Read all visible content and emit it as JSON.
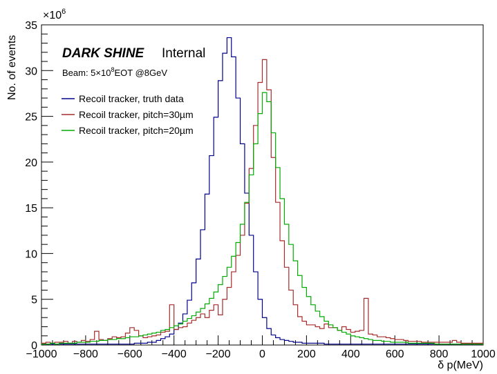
{
  "chart_data": {
    "type": "line",
    "style": "step-histogram",
    "title": "",
    "xlabel": "δ p(MeV)",
    "ylabel": "No. of events",
    "y_multiplier_label": "×10",
    "y_multiplier_exponent": "6",
    "xlim": [
      -1000,
      1000
    ],
    "ylim": [
      0,
      35
    ],
    "x_ticks": [
      -1000,
      -800,
      -600,
      -400,
      -200,
      0,
      200,
      400,
      600,
      800,
      1000
    ],
    "y_ticks": [
      0,
      5,
      10,
      15,
      20,
      25,
      30,
      35
    ],
    "grid": false,
    "legend_position": "top-left",
    "annotations": {
      "experiment": "DARK SHINE",
      "status": "Internal",
      "beam_prefix": "Beam: 5×10",
      "beam_exponent": "8",
      "beam_suffix": "EOT @8GeV"
    },
    "bin_edges_start": -1000,
    "bin_width": 20,
    "series": [
      {
        "name": "Recoil tracker, truth data",
        "color": "#00008b",
        "values": [
          0.1,
          0.1,
          0.1,
          0.1,
          0.1,
          0.1,
          0.1,
          0.1,
          0.1,
          0.1,
          0.1,
          0.1,
          0.1,
          0.1,
          0.1,
          0.1,
          0.1,
          0.1,
          0.1,
          0.1,
          0.1,
          0.2,
          0.2,
          0.2,
          0.3,
          0.3,
          0.5,
          0.7,
          0.9,
          1.2,
          1.7,
          2.4,
          3.4,
          4.9,
          6.8,
          9.4,
          12.6,
          16.5,
          20.7,
          24.9,
          28.9,
          31.9,
          33.6,
          31.5,
          27.0,
          22.0,
          16.6,
          12.0,
          8.0,
          5.0,
          3.0,
          1.8,
          1.1,
          0.8,
          0.6,
          0.5,
          0.4,
          0.3,
          0.3,
          0.2,
          0.2,
          0.2,
          0.2,
          0.2,
          0.1,
          0.1,
          0.1,
          0.1,
          0.1,
          0.1,
          0.1,
          0.1,
          0.1,
          0.1,
          0.1,
          0.1,
          0.1,
          0.1,
          0.1,
          0.1,
          0.1,
          0.1,
          0.1,
          0.1,
          0.1,
          0.1,
          0.1,
          0.1,
          0.1,
          0.1,
          0.1,
          0.1,
          0.1,
          0.1,
          0.1,
          0.1,
          0.1,
          0.1,
          0.1,
          0.1
        ]
      },
      {
        "name": "Recoil tracker, pitch=30µm",
        "color": "#a52a2a",
        "values": [
          0.2,
          0.3,
          0.2,
          0.3,
          0.3,
          0.4,
          0.2,
          0.4,
          0.3,
          0.5,
          0.4,
          0.6,
          1.5,
          0.6,
          0.5,
          0.7,
          0.9,
          0.8,
          0.9,
          1.3,
          1.9,
          1.6,
          1.0,
          0.8,
          0.9,
          1.0,
          1.1,
          1.4,
          1.5,
          4.4,
          1.7,
          1.9,
          2.0,
          2.4,
          2.7,
          3.0,
          3.4,
          3.0,
          3.8,
          4.4,
          3.3,
          5.0,
          6.3,
          8.0,
          9.8,
          12.0,
          15.5,
          19.3,
          24.0,
          28.7,
          31.2,
          27.9,
          20.5,
          15.6,
          11.4,
          8.5,
          6.0,
          4.4,
          3.1,
          2.6,
          2.2,
          2.2,
          2.0,
          1.8,
          2.3,
          1.9,
          1.9,
          1.6,
          2.0,
          1.7,
          1.4,
          1.5,
          1.6,
          5.1,
          1.2,
          1.1,
          0.9,
          0.9,
          0.8,
          0.7,
          0.6,
          0.6,
          0.5,
          0.4,
          0.4,
          0.4,
          0.3,
          0.3,
          0.3,
          0.3,
          0.3,
          0.3,
          0.3,
          0.5,
          0.3,
          0.2,
          0.2,
          0.2,
          0.2,
          0.2
        ]
      },
      {
        "name": "Recoil tracker, pitch=20µm",
        "color": "#00aa00",
        "values": [
          0.1,
          0.1,
          0.2,
          0.1,
          0.2,
          0.2,
          0.2,
          0.2,
          0.3,
          0.3,
          0.3,
          0.4,
          0.4,
          0.5,
          0.5,
          0.6,
          0.6,
          0.7,
          0.7,
          0.8,
          0.9,
          0.9,
          1.0,
          1.1,
          1.2,
          1.3,
          1.4,
          1.6,
          1.7,
          1.9,
          2.1,
          2.3,
          2.6,
          2.9,
          3.2,
          3.6,
          4.0,
          4.5,
          5.1,
          5.8,
          6.6,
          7.5,
          8.5,
          9.7,
          11.2,
          13.2,
          15.6,
          18.6,
          22.0,
          25.3,
          27.6,
          26.6,
          23.2,
          19.4,
          16.0,
          13.2,
          11.0,
          9.2,
          7.6,
          6.3,
          5.3,
          4.4,
          3.7,
          3.1,
          2.6,
          2.2,
          1.9,
          1.6,
          1.4,
          1.2,
          1.0,
          0.9,
          0.8,
          0.7,
          0.6,
          0.5,
          0.5,
          0.4,
          0.4,
          0.3,
          0.3,
          0.3,
          0.3,
          0.2,
          0.2,
          0.2,
          0.2,
          0.2,
          0.2,
          0.1,
          0.1,
          0.1,
          0.1,
          0.1,
          0.1,
          0.1,
          0.1,
          0.1,
          0.1,
          0.1
        ]
      }
    ]
  }
}
